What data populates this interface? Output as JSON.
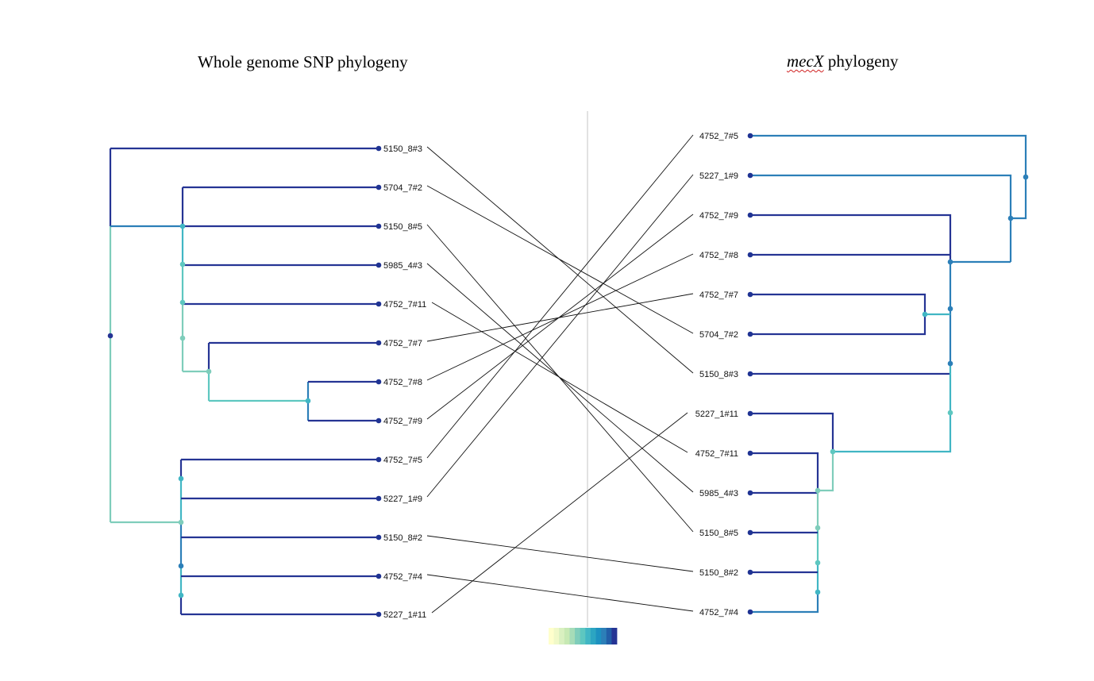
{
  "left_panel": {
    "title": "Whole genome SNP phylogeny",
    "taxa": [
      "5150_8#3",
      "5704_7#2",
      "5150_8#5",
      "5985_4#3",
      "4752_7#11",
      "4752_7#7",
      "4752_7#8",
      "4752_7#9",
      "4752_7#5",
      "5227_1#9",
      "5150_8#2",
      "4752_7#4",
      "5227_1#11"
    ]
  },
  "right_panel": {
    "title_gene": "mecX",
    "title_suffix": " phylogeny",
    "taxa": [
      "4752_7#5",
      "5227_1#9",
      "4752_7#9",
      "4752_7#8",
      "4752_7#7",
      "5704_7#2",
      "5150_8#3",
      "5227_1#11",
      "4752_7#11",
      "5985_4#3",
      "5150_8#5",
      "5150_8#2",
      "4752_7#4"
    ]
  },
  "colors": {
    "tip": "#1f3393",
    "dark_blue": "#253494",
    "mid_blue": "#2c7fb8",
    "light_blue": "#41b6c4",
    "teal": "#5ec7c0",
    "pale_teal": "#7fcdbb",
    "connector": "#111111",
    "divider": "#d8d8d8"
  },
  "color_scale": [
    "#ffffcc",
    "#f0f9c8",
    "#d9f0c0",
    "#c7e9b4",
    "#a6dcb8",
    "#7fcdbb",
    "#5ec7c0",
    "#41b6c4",
    "#2ca5c2",
    "#1d91c0",
    "#2c7fb8",
    "#225ea8",
    "#253494"
  ]
}
